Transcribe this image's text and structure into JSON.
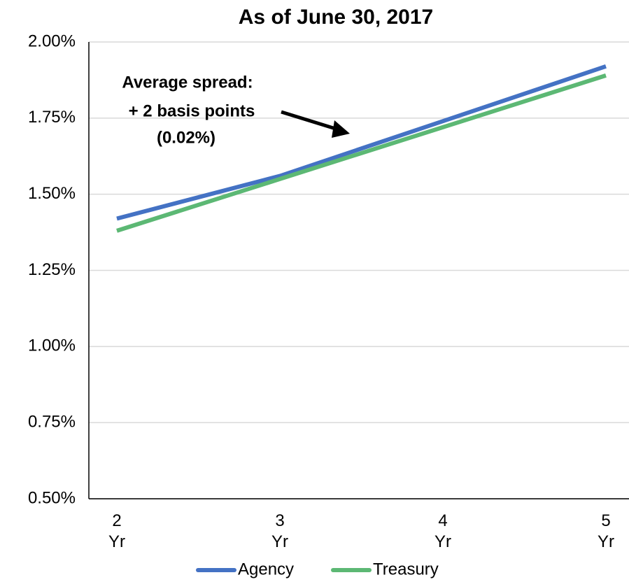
{
  "chart_data": {
    "type": "line",
    "title": "As of June 30, 2017",
    "categories": [
      "2 Yr",
      "3 Yr",
      "4 Yr",
      "5 Yr"
    ],
    "series": [
      {
        "name": "Agency",
        "color": "#4472c4",
        "values": [
          1.42,
          1.56,
          1.74,
          1.92
        ]
      },
      {
        "name": "Treasury",
        "color": "#5cb874",
        "values": [
          1.38,
          1.55,
          1.72,
          1.89
        ]
      }
    ],
    "ylim": [
      0.5,
      2.0
    ],
    "yticks": [
      {
        "value": 0.5,
        "label": "0.50%"
      },
      {
        "value": 0.75,
        "label": "0.75%"
      },
      {
        "value": 1.0,
        "label": "1.00%"
      },
      {
        "value": 1.25,
        "label": "1.25%"
      },
      {
        "value": 1.5,
        "label": "1.50%"
      },
      {
        "value": 1.75,
        "label": "1.75%"
      },
      {
        "value": 2.0,
        "label": "2.00%"
      }
    ],
    "grid": true,
    "legend": "bottom",
    "annotation": {
      "text": [
        "Average spread:",
        "+ 2 basis points",
        "(0.02%)"
      ]
    }
  }
}
